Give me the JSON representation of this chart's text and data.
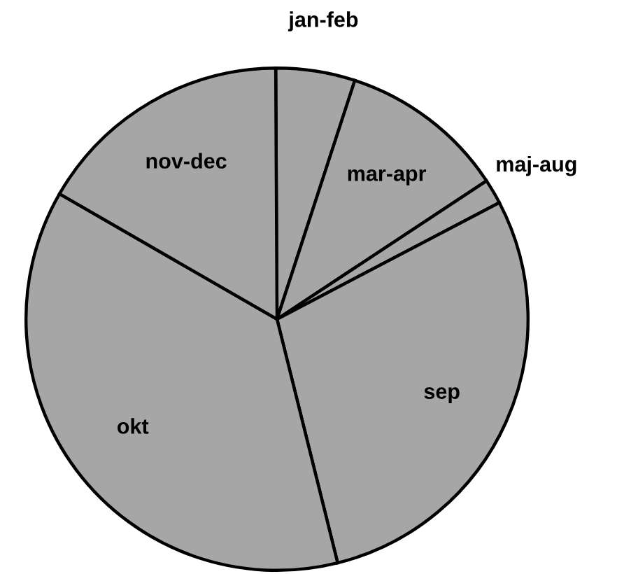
{
  "chart_data": {
    "type": "pie",
    "categories": [
      "jan-feb",
      "mar-apr",
      "maj-aug",
      "sep",
      "okt",
      "nov-dec"
    ],
    "values": [
      5.1,
      10.7,
      1.6,
      28.8,
      37.2,
      16.6
    ],
    "colors": [
      "#a6a6a6",
      "#a6a6a6",
      "#a6a6a6",
      "#a6a6a6",
      "#a6a6a6",
      "#a6a6a6"
    ]
  }
}
